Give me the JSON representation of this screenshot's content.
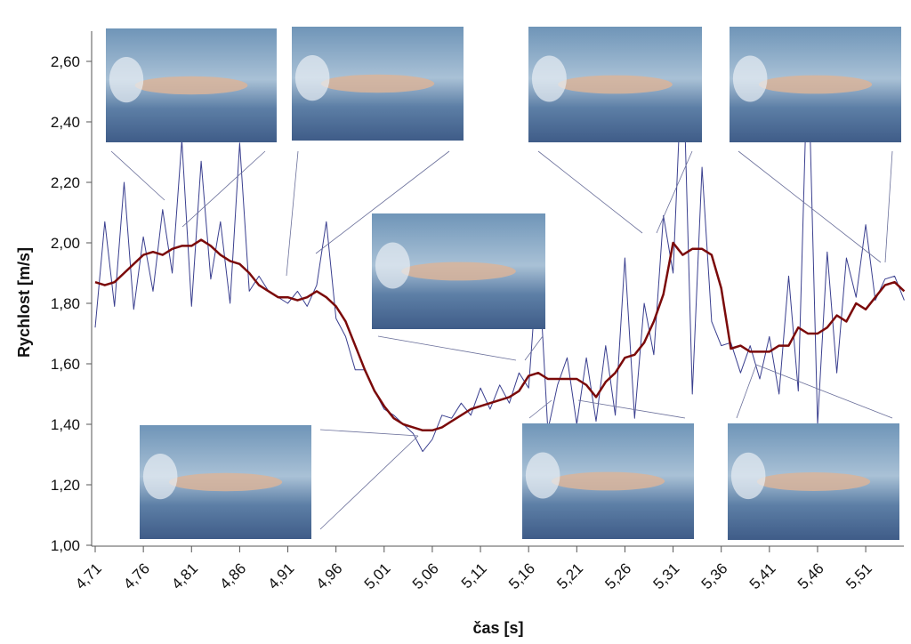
{
  "chart_data": {
    "type": "line",
    "y_label": "Rychlost [m/s]",
    "x_label": "čas [s]",
    "x": [
      4.71,
      4.72,
      4.73,
      4.74,
      4.75,
      4.76,
      4.77,
      4.78,
      4.79,
      4.8,
      4.81,
      4.82,
      4.83,
      4.84,
      4.85,
      4.86,
      4.87,
      4.88,
      4.89,
      4.9,
      4.91,
      4.92,
      4.93,
      4.94,
      4.95,
      4.96,
      4.97,
      4.98,
      4.99,
      5.0,
      5.01,
      5.02,
      5.03,
      5.04,
      5.05,
      5.06,
      5.07,
      5.08,
      5.09,
      5.1,
      5.11,
      5.12,
      5.13,
      5.14,
      5.15,
      5.16,
      5.17,
      5.18,
      5.19,
      5.2,
      5.21,
      5.22,
      5.23,
      5.24,
      5.25,
      5.26,
      5.27,
      5.28,
      5.29,
      5.3,
      5.31,
      5.32,
      5.33,
      5.34,
      5.35,
      5.36,
      5.37,
      5.38,
      5.39,
      5.4,
      5.41,
      5.42,
      5.43,
      5.44,
      5.45,
      5.46,
      5.47,
      5.48,
      5.49,
      5.5,
      5.51,
      5.52,
      5.53,
      5.54,
      5.55
    ],
    "series": [
      {
        "color": "#3a3f8f",
        "width": 1,
        "values": [
          1.72,
          2.07,
          1.79,
          2.2,
          1.78,
          2.02,
          1.84,
          2.11,
          1.9,
          2.34,
          1.79,
          2.27,
          1.88,
          2.07,
          1.8,
          2.33,
          1.84,
          1.89,
          1.84,
          1.82,
          1.8,
          1.84,
          1.79,
          1.86,
          2.07,
          1.75,
          1.69,
          1.58,
          1.58,
          1.51,
          1.45,
          1.43,
          1.4,
          1.37,
          1.31,
          1.35,
          1.43,
          1.42,
          1.47,
          1.43,
          1.52,
          1.45,
          1.53,
          1.47,
          1.57,
          1.52,
          1.96,
          1.38,
          1.53,
          1.62,
          1.4,
          1.62,
          1.41,
          1.66,
          1.43,
          1.95,
          1.42,
          1.8,
          1.63,
          2.09,
          1.9,
          2.65,
          1.5,
          2.25,
          1.74,
          1.66,
          1.67,
          1.57,
          1.66,
          1.55,
          1.69,
          1.5,
          1.89,
          1.51,
          2.65,
          1.4,
          1.97,
          1.57,
          1.95,
          1.82,
          2.06,
          1.81,
          1.88,
          1.89,
          1.81
        ]
      },
      {
        "color": "#7b0a0a",
        "width": 2.5,
        "values": [
          1.87,
          1.86,
          1.87,
          1.9,
          1.93,
          1.96,
          1.97,
          1.96,
          1.98,
          1.99,
          1.99,
          2.01,
          1.99,
          1.96,
          1.94,
          1.93,
          1.9,
          1.86,
          1.84,
          1.82,
          1.82,
          1.81,
          1.82,
          1.84,
          1.82,
          1.79,
          1.74,
          1.66,
          1.58,
          1.51,
          1.46,
          1.42,
          1.4,
          1.39,
          1.38,
          1.38,
          1.39,
          1.41,
          1.43,
          1.45,
          1.46,
          1.47,
          1.48,
          1.49,
          1.51,
          1.56,
          1.57,
          1.55,
          1.55,
          1.55,
          1.55,
          1.53,
          1.49,
          1.54,
          1.57,
          1.62,
          1.63,
          1.67,
          1.74,
          1.83,
          2.0,
          1.96,
          1.98,
          1.98,
          1.96,
          1.85,
          1.65,
          1.66,
          1.64,
          1.64,
          1.64,
          1.66,
          1.66,
          1.72,
          1.7,
          1.7,
          1.72,
          1.76,
          1.74,
          1.8,
          1.78,
          1.82,
          1.86,
          1.87,
          1.84
        ]
      }
    ],
    "xlim": [
      4.705,
      5.55
    ],
    "xticks": [
      {
        "value": 4.71,
        "label": "4,71"
      },
      {
        "value": 4.76,
        "label": "4,76"
      },
      {
        "value": 4.81,
        "label": "4,81"
      },
      {
        "value": 4.86,
        "label": "4,86"
      },
      {
        "value": 4.91,
        "label": "4,91"
      },
      {
        "value": 4.96,
        "label": "4,96"
      },
      {
        "value": 5.01,
        "label": "5,01"
      },
      {
        "value": 5.06,
        "label": "5,06"
      },
      {
        "value": 5.11,
        "label": "5,11"
      },
      {
        "value": 5.16,
        "label": "5,16"
      },
      {
        "value": 5.21,
        "label": "5,21"
      },
      {
        "value": 5.26,
        "label": "5,26"
      },
      {
        "value": 5.31,
        "label": "5,31"
      },
      {
        "value": 5.36,
        "label": "5,36"
      },
      {
        "value": 5.41,
        "label": "5,41"
      },
      {
        "value": 5.46,
        "label": "5,46"
      },
      {
        "value": 5.51,
        "label": "5,51"
      }
    ],
    "ylim": [
      1.0,
      2.7
    ],
    "yticks": [
      {
        "value": 1.0,
        "label": "1,00"
      },
      {
        "value": 1.2,
        "label": "1,20"
      },
      {
        "value": 1.4,
        "label": "1,40"
      },
      {
        "value": 1.6,
        "label": "1,60"
      },
      {
        "value": 1.8,
        "label": "1,80"
      },
      {
        "value": 2.0,
        "label": "2,00"
      },
      {
        "value": 2.2,
        "label": "2,20"
      },
      {
        "value": 2.4,
        "label": "2,40"
      },
      {
        "value": 2.6,
        "label": "2,60"
      }
    ]
  }
}
